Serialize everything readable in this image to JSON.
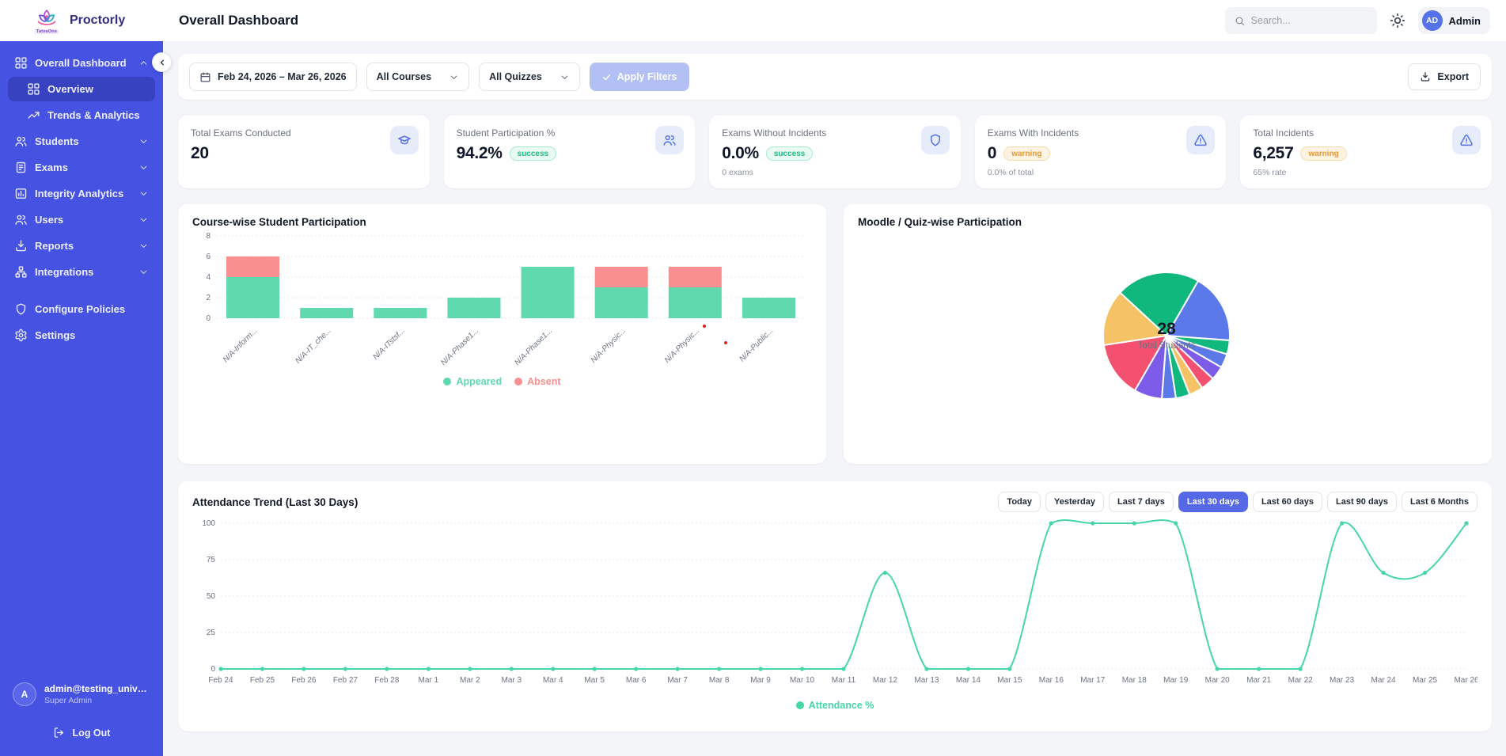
{
  "brand": {
    "name": "Proctorly",
    "logo_sub": "TatvaOne"
  },
  "header": {
    "title": "Overall Dashboard",
    "search_placeholder": "Search...",
    "user_initials": "AD",
    "user_name": "Admin"
  },
  "sidebar": {
    "items": [
      {
        "label": "Overall Dashboard",
        "icon": "grid-icon",
        "chevron": "up",
        "type": "parent",
        "active": false
      },
      {
        "label": "Overview",
        "icon": "grid-icon",
        "type": "sub",
        "active": true
      },
      {
        "label": "Trends & Analytics",
        "icon": "trending-up-icon",
        "type": "sub",
        "active": false
      },
      {
        "label": "Students",
        "icon": "users-icon",
        "chevron": "down",
        "type": "parent",
        "active": false
      },
      {
        "label": "Exams",
        "icon": "exams-icon",
        "chevron": "down",
        "type": "parent",
        "active": false
      },
      {
        "label": "Integrity Analytics",
        "icon": "bar-chart-icon",
        "chevron": "down",
        "type": "parent",
        "active": false
      },
      {
        "label": "Users",
        "icon": "users-icon",
        "chevron": "down",
        "type": "parent",
        "active": false
      },
      {
        "label": "Reports",
        "icon": "download-icon",
        "chevron": "down",
        "type": "parent",
        "active": false
      },
      {
        "label": "Integrations",
        "icon": "network-icon",
        "chevron": "down",
        "type": "parent",
        "active": false
      },
      {
        "label": "Configure Policies",
        "icon": "shield-icon",
        "type": "parent",
        "gap_before": true,
        "active": false
      },
      {
        "label": "Settings",
        "icon": "gear-icon",
        "type": "parent",
        "active": false
      }
    ],
    "footer": {
      "avatar_initial": "A",
      "email": "admin@testing_univ_...",
      "role": "Super Admin",
      "logout_label": "Log Out"
    }
  },
  "filters": {
    "date_range": "Feb 24, 2026 – Mar 26, 2026",
    "course_select": "All Courses",
    "quiz_select": "All Quizzes",
    "apply_label": "Apply Filters",
    "export_label": "Export"
  },
  "stats": [
    {
      "label": "Total Exams Conducted",
      "value": "20",
      "badge": "",
      "sub": "",
      "icon": "graduation-cap-icon"
    },
    {
      "label": "Student Participation %",
      "value": "94.2%",
      "badge": "success",
      "sub": "",
      "icon": "users-icon"
    },
    {
      "label": "Exams Without Incidents",
      "value": "0.0%",
      "badge": "success",
      "sub": "0 exams",
      "icon": "shield-icon"
    },
    {
      "label": "Exams With Incidents",
      "value": "0",
      "badge": "warning",
      "sub": "0.0% of total",
      "icon": "alert-triangle-icon"
    },
    {
      "label": "Total Incidents",
      "value": "6,257",
      "badge": "warning",
      "sub": "65% rate",
      "icon": "alert-triangle-icon"
    }
  ],
  "chart_data": [
    {
      "type": "bar",
      "title": "Course-wise Student Participation",
      "stacked": true,
      "categories": [
        "N/A-Inform...",
        "N/A-IT_che...",
        "N/A-ITstsf...",
        "N/A-Phase1...",
        "N/A-Phase1...",
        "N/A-Physic...",
        "N/A-Physic...",
        "N/A-Public..."
      ],
      "series": [
        {
          "name": "Appeared",
          "color": "#5fd9ad",
          "values": [
            4,
            1,
            1,
            2,
            5,
            3,
            3,
            2
          ]
        },
        {
          "name": "Absent",
          "color": "#f98f8f",
          "values": [
            2,
            0,
            0,
            0,
            0,
            2,
            2,
            0
          ]
        }
      ],
      "ylim": [
        0,
        8
      ],
      "yticks": [
        0,
        2,
        4,
        6,
        8
      ],
      "legend_position": "bottom"
    },
    {
      "type": "pie",
      "title": "Moodle / Quiz-wise Participation",
      "center_value": "28",
      "center_label": "Total Students",
      "total": 28,
      "start_angle_deg": 30,
      "slices": [
        {
          "value": 5,
          "color": "#5b79e8"
        },
        {
          "value": 1,
          "color": "#10b87e"
        },
        {
          "value": 1,
          "color": "#5b79e8"
        },
        {
          "value": 1,
          "color": "#7b5be8"
        },
        {
          "value": 1,
          "color": "#f4506f"
        },
        {
          "value": 1,
          "color": "#f5c265"
        },
        {
          "value": 1,
          "color": "#10b87e"
        },
        {
          "value": 1,
          "color": "#5b79e8"
        },
        {
          "value": 2,
          "color": "#7b5be8"
        },
        {
          "value": 4,
          "color": "#f4506f"
        },
        {
          "value": 4,
          "color": "#f5c265"
        },
        {
          "value": 6,
          "color": "#10b87e"
        }
      ]
    },
    {
      "type": "line",
      "title": "Attendance Trend (Last 30 Days)",
      "x": [
        "Feb 24",
        "Feb 25",
        "Feb 26",
        "Feb 27",
        "Feb 28",
        "Mar 1",
        "Mar 2",
        "Mar 3",
        "Mar 4",
        "Mar 5",
        "Mar 6",
        "Mar 7",
        "Mar 8",
        "Mar 9",
        "Mar 10",
        "Mar 11",
        "Mar 12",
        "Mar 13",
        "Mar 14",
        "Mar 15",
        "Mar 16",
        "Mar 17",
        "Mar 18",
        "Mar 19",
        "Mar 20",
        "Mar 21",
        "Mar 22",
        "Mar 23",
        "Mar 24",
        "Mar 25",
        "Mar 26"
      ],
      "series": [
        {
          "name": "Attendance %",
          "color": "#47d6a6",
          "values": [
            0,
            0,
            0,
            0,
            0,
            0,
            0,
            0,
            0,
            0,
            0,
            0,
            0,
            0,
            0,
            0,
            66,
            0,
            0,
            0,
            100,
            100,
            100,
            100,
            0,
            0,
            0,
            100,
            66,
            66,
            100
          ]
        }
      ],
      "ylim": [
        0,
        100
      ],
      "yticks": [
        0,
        25,
        50,
        75,
        100
      ],
      "legend_position": "bottom"
    }
  ],
  "attendance": {
    "ranges": [
      "Today",
      "Yesterday",
      "Last 7 days",
      "Last 30 days",
      "Last 60 days",
      "Last 90 days",
      "Last 6 Months"
    ],
    "active_range": "Last 30 days"
  },
  "colors": {
    "sidebar_bg": "#4652e2",
    "sidebar_active_bg": "#3742c0",
    "accent_blue": "#5569e6",
    "appeared_green": "#5fd9ad",
    "absent_red": "#f98f8f",
    "attendance_line": "#47d6a6",
    "success_text": "#23ba82",
    "warning_text": "#e39a3b"
  }
}
